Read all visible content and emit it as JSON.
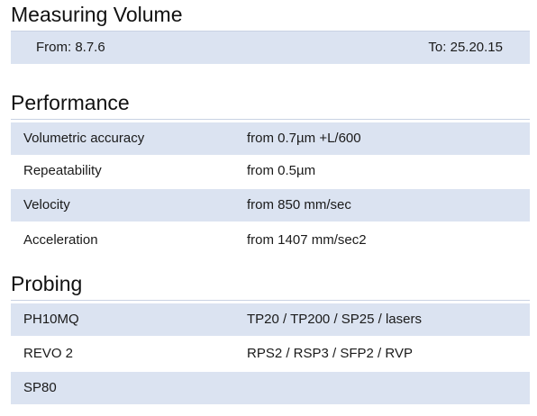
{
  "measuring_volume": {
    "title": "Measuring Volume",
    "from": "From: 8.7.6",
    "to": "To: 25.20.15"
  },
  "performance": {
    "title": "Performance",
    "rows": [
      {
        "label": "Volumetric accuracy",
        "value": "from 0.7µm +L/600"
      },
      {
        "label": "Repeatability",
        "value": "from 0.5µm"
      },
      {
        "label": "Velocity",
        "value": "from 850 mm/sec"
      },
      {
        "label": "Acceleration",
        "value": "from 1407 mm/sec2"
      }
    ]
  },
  "probing": {
    "title": "Probing",
    "rows": [
      {
        "label": "PH10MQ",
        "value": "TP20 / TP200 / SP25 / lasers"
      },
      {
        "label": "REVO 2",
        "value": "RPS2 / RSP3 / SFP2 / RVP"
      },
      {
        "label": "SP80",
        "value": ""
      }
    ]
  },
  "colors": {
    "row_shade": "#dbe3f1",
    "rule": "#c9d2e3",
    "text": "#1a1a1a"
  }
}
